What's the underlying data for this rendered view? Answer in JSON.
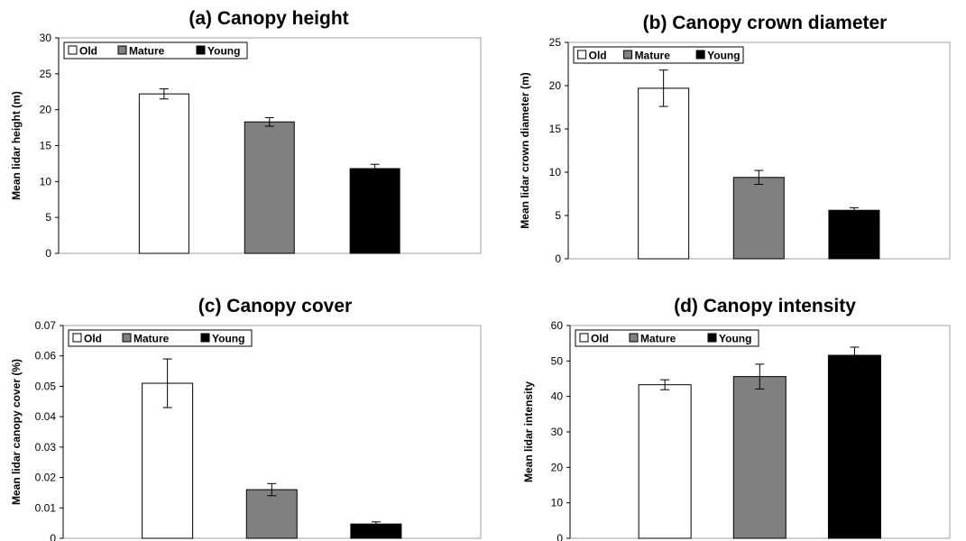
{
  "chart_data": [
    {
      "type": "bar",
      "title": "(a) Canopy height",
      "ylabel": "Mean lidar height (m)",
      "xlabel": "",
      "ylim": [
        0,
        30
      ],
      "yticks": [
        0,
        5,
        10,
        15,
        20,
        25,
        30
      ],
      "ytick_labels": [
        "0",
        "5",
        "10",
        "15",
        "20",
        "25",
        "30"
      ],
      "categories": [
        "Old",
        "Mature",
        "Young"
      ],
      "values": [
        22.2,
        18.3,
        11.8
      ],
      "errors": [
        0.7,
        0.6,
        0.6
      ],
      "colors": [
        "#ffffff",
        "#808080",
        "#000000"
      ],
      "legend": [
        "Old",
        "Mature",
        "Young"
      ],
      "legend_position": "top-left",
      "grid": false
    },
    {
      "type": "bar",
      "title": "(b) Canopy crown diameter",
      "ylabel": "Mean lidar crown diameter (m)",
      "xlabel": "",
      "ylim": [
        0,
        25
      ],
      "yticks": [
        0,
        5,
        10,
        15,
        20,
        25
      ],
      "ytick_labels": [
        "0",
        "5",
        "10",
        "15",
        "20",
        "25"
      ],
      "categories": [
        "Old",
        "Mature",
        "Young"
      ],
      "values": [
        19.7,
        9.4,
        5.6
      ],
      "errors": [
        2.1,
        0.8,
        0.3
      ],
      "colors": [
        "#ffffff",
        "#808080",
        "#000000"
      ],
      "legend": [
        "Old",
        "Mature",
        "Young"
      ],
      "legend_position": "top-left",
      "grid": false
    },
    {
      "type": "bar",
      "title": "(c) Canopy cover",
      "ylabel": "Mean lidar canopy cover (%)",
      "xlabel": "",
      "ylim": [
        0,
        0.07
      ],
      "yticks": [
        0,
        0.01,
        0.02,
        0.03,
        0.04,
        0.05,
        0.06,
        0.07
      ],
      "ytick_labels": [
        "0",
        "0.01",
        "0.02",
        "0.03",
        "0.04",
        "0.05",
        "0.06",
        "0.07"
      ],
      "categories": [
        "Old",
        "Mature",
        "Young"
      ],
      "values": [
        0.051,
        0.016,
        0.0047
      ],
      "errors": [
        0.008,
        0.002,
        0.0007
      ],
      "colors": [
        "#ffffff",
        "#808080",
        "#000000"
      ],
      "legend": [
        "Old",
        "Mature",
        "Young"
      ],
      "legend_position": "top-left",
      "grid": false
    },
    {
      "type": "bar",
      "title": "(d) Canopy intensity",
      "ylabel": "Mean lidar intensity",
      "xlabel": "",
      "ylim": [
        0,
        60
      ],
      "yticks": [
        0,
        10,
        20,
        30,
        40,
        50,
        60
      ],
      "ytick_labels": [
        "0",
        "10",
        "20",
        "30",
        "40",
        "50",
        "60"
      ],
      "categories": [
        "Old",
        "Mature",
        "Young"
      ],
      "values": [
        43.3,
        45.6,
        51.6
      ],
      "errors": [
        1.4,
        3.5,
        2.3
      ],
      "colors": [
        "#ffffff",
        "#808080",
        "#000000"
      ],
      "legend": [
        "Old",
        "Mature",
        "Young"
      ],
      "legend_position": "top-left",
      "grid": false
    }
  ]
}
